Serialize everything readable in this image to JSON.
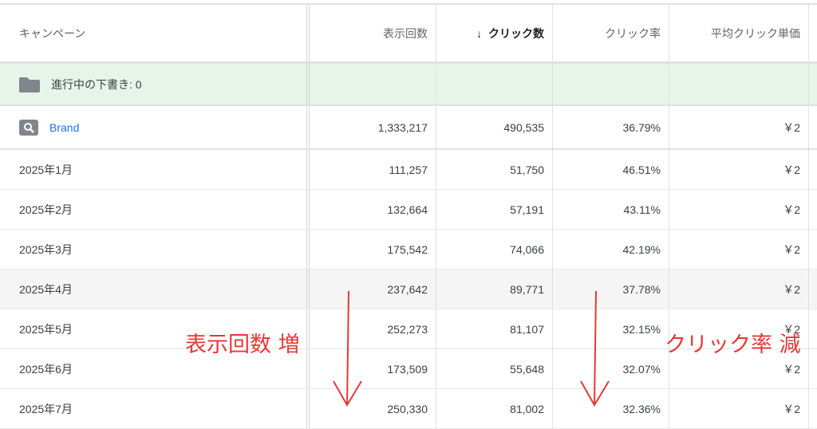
{
  "headers": {
    "campaign": "キャンペーン",
    "impressions": "表示回数",
    "clicks": "クリック数",
    "sort_icon": "↓",
    "ctr": "クリック率",
    "cpc": "平均クリック単価"
  },
  "draft": {
    "label": "進行中の下書き: 0",
    "icon": "folder-icon"
  },
  "brand": {
    "name": "Brand",
    "icon": "search-icon",
    "impressions": "1,333,217",
    "clicks": "490,535",
    "ctr": "36.79%",
    "cpc": "￥2"
  },
  "rows": [
    {
      "month": "2025年1月",
      "impressions": "111,257",
      "clicks": "51,750",
      "ctr": "46.51%",
      "cpc": "￥2"
    },
    {
      "month": "2025年2月",
      "impressions": "132,664",
      "clicks": "57,191",
      "ctr": "43.11%",
      "cpc": "￥2"
    },
    {
      "month": "2025年3月",
      "impressions": "175,542",
      "clicks": "74,066",
      "ctr": "42.19%",
      "cpc": "￥2"
    },
    {
      "month": "2025年4月",
      "impressions": "237,642",
      "clicks": "89,771",
      "ctr": "37.78%",
      "cpc": "￥2"
    },
    {
      "month": "2025年5月",
      "impressions": "252,273",
      "clicks": "81,107",
      "ctr": "32.15%",
      "cpc": "￥2"
    },
    {
      "month": "2025年6月",
      "impressions": "173,509",
      "clicks": "55,648",
      "ctr": "32.07%",
      "cpc": "￥2"
    },
    {
      "month": "2025年7月",
      "impressions": "250,330",
      "clicks": "81,002",
      "ctr": "32.36%",
      "cpc": "￥2"
    }
  ],
  "annotations": {
    "impressions_note": "表示回数 増",
    "ctr_note": "クリック率 減",
    "color": "#e53935"
  }
}
